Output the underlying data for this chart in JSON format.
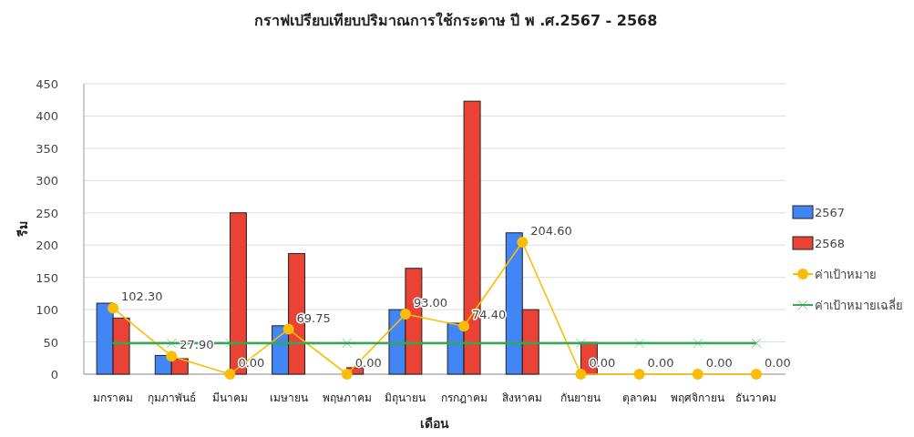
{
  "chart_data": {
    "type": "bar",
    "title": "กราฟเปรียบเทียบปริมาณการใช้กระดาษ ปี พ .ศ.2567 - 2568",
    "xlabel": "เดือน",
    "ylabel": "รีม",
    "categories": [
      "มกราคม",
      "กุมภาพันธ์",
      "มีนาคม",
      "เมษายน",
      "พฤษภาคม",
      "มิถุนายน",
      "กรกฎาคม",
      "สิงหาคม",
      "กันยายน",
      "ตุลาคม",
      "พฤศจิกายน",
      "ธันวาคม"
    ],
    "series": [
      {
        "name": "2567",
        "color": "#4285f4",
        "values": [
          110,
          29,
          null,
          75,
          null,
          100,
          79,
          219,
          null,
          null,
          null,
          null
        ]
      },
      {
        "name": "2568",
        "color": "#ea4335",
        "values": [
          87,
          24,
          250,
          187,
          10,
          164,
          423,
          100,
          49,
          null,
          null,
          null
        ]
      },
      {
        "name": "ค่าเป้าหมาย",
        "type": "line",
        "color": "#fbbc04",
        "marker": "circle",
        "values": [
          102.3,
          27.9,
          0,
          69.75,
          0,
          93,
          74.4,
          204.6,
          0,
          0,
          0,
          0
        ],
        "value_labels": [
          "102.30",
          "27.90",
          "0.00",
          "69.75",
          "0.00",
          "93.00",
          "74.40",
          "204.60",
          "0.00",
          "0.00",
          "0.00",
          "0.00"
        ]
      },
      {
        "name": "ค่าเป้าหมายเฉลี่ย",
        "type": "line",
        "color": "#34a853",
        "marker": "cross",
        "values": [
          48,
          48,
          48,
          48,
          48,
          48,
          48,
          48,
          48,
          48,
          48,
          48
        ]
      }
    ],
    "ylim": [
      0,
      450
    ],
    "yticks": [
      0,
      50,
      100,
      150,
      200,
      250,
      300,
      350,
      400,
      450
    ],
    "grid": "y",
    "legend": "right"
  }
}
